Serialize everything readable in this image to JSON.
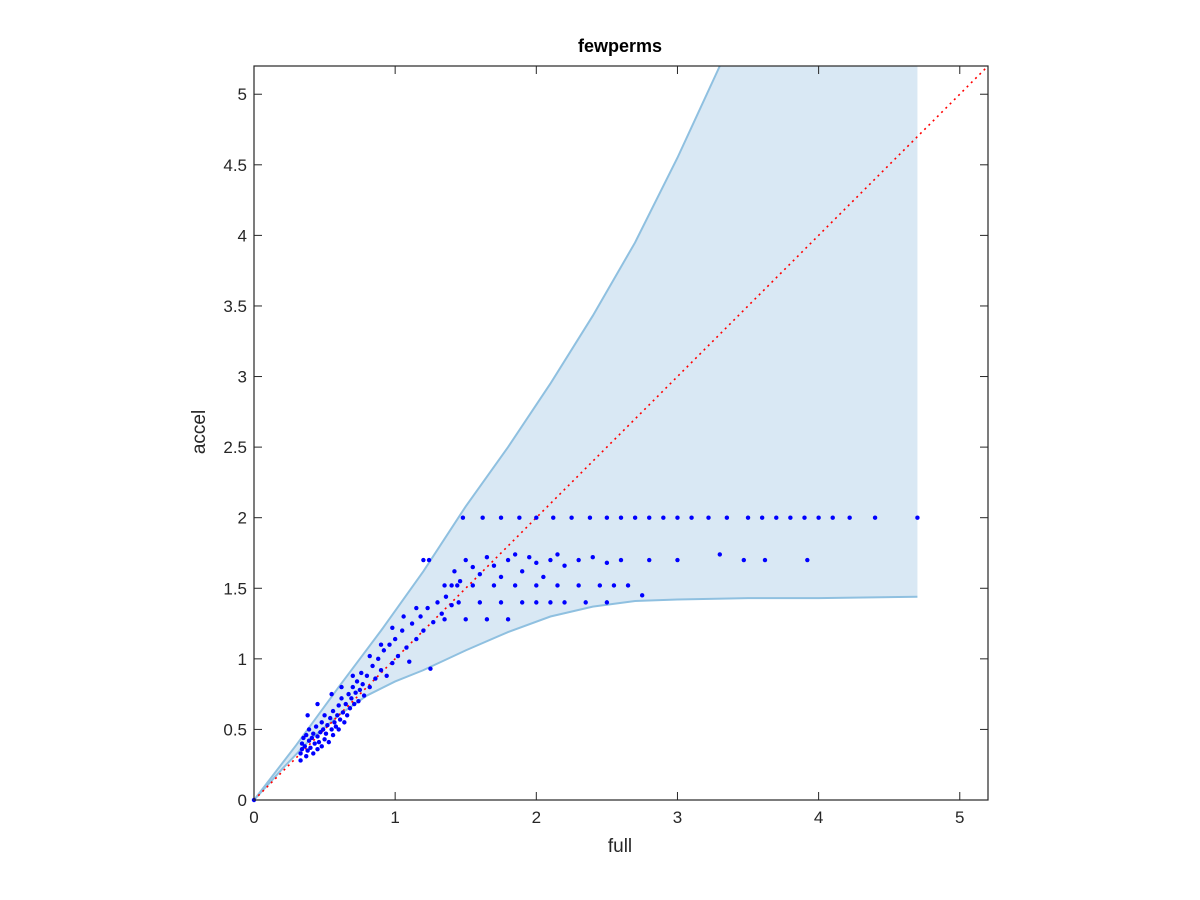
{
  "chart_data": {
    "type": "scatter",
    "title": "fewperms",
    "xlabel": "full",
    "ylabel": "accel",
    "xlim": [
      0,
      5.2
    ],
    "ylim": [
      0,
      5.2
    ],
    "grid": false,
    "legend": "none",
    "xticks": [
      "0",
      "1",
      "2",
      "3",
      "4",
      "5"
    ],
    "yticks": [
      "0",
      "0.5",
      "1",
      "1.5",
      "2",
      "2.5",
      "3",
      "3.5",
      "4",
      "4.5",
      "5"
    ],
    "xtick_values": [
      0,
      1,
      2,
      3,
      4,
      5
    ],
    "ytick_values": [
      0,
      0.5,
      1,
      1.5,
      2,
      2.5,
      3,
      3.5,
      4,
      4.5,
      5
    ],
    "colors": {
      "points": "#0000ff",
      "band_fill": "#d9e8f4",
      "band_edge": "#8fc0e0",
      "reference_line": "#ff0000",
      "axes": "#262626"
    },
    "reference_line": {
      "style": "dotted",
      "x": [
        0,
        5.2
      ],
      "y": [
        0,
        5.2
      ]
    },
    "band": {
      "upper": [
        [
          0,
          0
        ],
        [
          0.3,
          0.39
        ],
        [
          0.6,
          0.8
        ],
        [
          0.9,
          1.2
        ],
        [
          1.2,
          1.62
        ],
        [
          1.5,
          2.08
        ],
        [
          1.8,
          2.5
        ],
        [
          2.1,
          2.95
        ],
        [
          2.4,
          3.43
        ],
        [
          2.7,
          3.95
        ],
        [
          3.0,
          4.55
        ],
        [
          3.3,
          5.2
        ],
        [
          4.7,
          5.2
        ]
      ],
      "lower": [
        [
          0,
          0
        ],
        [
          0.2,
          0.22
        ],
        [
          0.4,
          0.43
        ],
        [
          0.6,
          0.6
        ],
        [
          0.8,
          0.74
        ],
        [
          1.0,
          0.84
        ],
        [
          1.2,
          0.92
        ],
        [
          1.5,
          1.06
        ],
        [
          1.8,
          1.19
        ],
        [
          2.1,
          1.3
        ],
        [
          2.4,
          1.37
        ],
        [
          2.7,
          1.41
        ],
        [
          3.0,
          1.42
        ],
        [
          3.5,
          1.43
        ],
        [
          4.0,
          1.43
        ],
        [
          4.7,
          1.44
        ]
      ],
      "right_edge_x": 4.7
    },
    "series": [
      {
        "points": [
          [
            0,
            0
          ],
          [
            0.33,
            0.28
          ],
          [
            0.33,
            0.33
          ],
          [
            0.34,
            0.36
          ],
          [
            0.34,
            0.4
          ],
          [
            0.35,
            0.44
          ],
          [
            0.36,
            0.38
          ],
          [
            0.37,
            0.31
          ],
          [
            0.37,
            0.46
          ],
          [
            0.38,
            0.35
          ],
          [
            0.39,
            0.42
          ],
          [
            0.39,
            0.5
          ],
          [
            0.4,
            0.37
          ],
          [
            0.41,
            0.44
          ],
          [
            0.42,
            0.33
          ],
          [
            0.42,
            0.47
          ],
          [
            0.43,
            0.4
          ],
          [
            0.44,
            0.52
          ],
          [
            0.45,
            0.36
          ],
          [
            0.45,
            0.45
          ],
          [
            0.46,
            0.41
          ],
          [
            0.47,
            0.48
          ],
          [
            0.48,
            0.38
          ],
          [
            0.48,
            0.55
          ],
          [
            0.49,
            0.5
          ],
          [
            0.5,
            0.43
          ],
          [
            0.5,
            0.6
          ],
          [
            0.51,
            0.47
          ],
          [
            0.52,
            0.53
          ],
          [
            0.53,
            0.41
          ],
          [
            0.54,
            0.58
          ],
          [
            0.55,
            0.5
          ],
          [
            0.56,
            0.46
          ],
          [
            0.56,
            0.63
          ],
          [
            0.57,
            0.55
          ],
          [
            0.58,
            0.52
          ],
          [
            0.59,
            0.6
          ],
          [
            0.6,
            0.67
          ],
          [
            0.6,
            0.5
          ],
          [
            0.61,
            0.57
          ],
          [
            0.62,
            0.72
          ],
          [
            0.63,
            0.62
          ],
          [
            0.64,
            0.55
          ],
          [
            0.65,
            0.68
          ],
          [
            0.66,
            0.6
          ],
          [
            0.67,
            0.75
          ],
          [
            0.68,
            0.65
          ],
          [
            0.69,
            0.72
          ],
          [
            0.7,
            0.8
          ],
          [
            0.71,
            0.68
          ],
          [
            0.72,
            0.76
          ],
          [
            0.73,
            0.84
          ],
          [
            0.74,
            0.7
          ],
          [
            0.75,
            0.78
          ],
          [
            0.76,
            0.9
          ],
          [
            0.77,
            0.82
          ],
          [
            0.78,
            0.74
          ],
          [
            0.8,
            0.88
          ],
          [
            0.82,
            0.8
          ],
          [
            0.84,
            0.95
          ],
          [
            0.86,
            0.86
          ],
          [
            0.88,
            1.0
          ],
          [
            0.9,
            0.92
          ],
          [
            0.92,
            1.06
          ],
          [
            0.94,
            0.88
          ],
          [
            0.96,
            1.1
          ],
          [
            0.98,
            0.97
          ],
          [
            1.0,
            1.14
          ],
          [
            1.02,
            1.02
          ],
          [
            1.05,
            1.2
          ],
          [
            1.08,
            1.08
          ],
          [
            1.1,
            0.98
          ],
          [
            1.12,
            1.25
          ],
          [
            1.15,
            1.14
          ],
          [
            1.18,
            1.3
          ],
          [
            1.2,
            1.2
          ],
          [
            1.23,
            1.36
          ],
          [
            1.25,
            0.93
          ],
          [
            1.27,
            1.26
          ],
          [
            1.3,
            1.4
          ],
          [
            1.33,
            1.32
          ],
          [
            1.36,
            1.44
          ],
          [
            1.4,
            1.38
          ],
          [
            1.44,
            1.52
          ],
          [
            0.38,
            0.6
          ],
          [
            0.45,
            0.68
          ],
          [
            0.55,
            0.75
          ],
          [
            0.62,
            0.8
          ],
          [
            0.7,
            0.88
          ],
          [
            0.82,
            1.02
          ],
          [
            0.9,
            1.1
          ],
          [
            0.98,
            1.22
          ],
          [
            1.06,
            1.3
          ],
          [
            1.15,
            1.36
          ],
          [
            1.2,
            1.7
          ],
          [
            1.24,
            1.7
          ],
          [
            1.35,
            1.52
          ],
          [
            1.42,
            1.62
          ],
          [
            1.46,
            1.55
          ],
          [
            1.5,
            1.7
          ],
          [
            1.55,
            1.65
          ],
          [
            1.6,
            1.6
          ],
          [
            1.65,
            1.72
          ],
          [
            1.7,
            1.66
          ],
          [
            1.75,
            1.58
          ],
          [
            1.8,
            1.7
          ],
          [
            1.85,
            1.74
          ],
          [
            1.9,
            1.62
          ],
          [
            1.95,
            1.72
          ],
          [
            2.0,
            1.68
          ],
          [
            2.05,
            1.58
          ],
          [
            2.1,
            1.7
          ],
          [
            2.15,
            1.74
          ],
          [
            2.2,
            1.66
          ],
          [
            2.3,
            1.7
          ],
          [
            2.4,
            1.72
          ],
          [
            2.5,
            1.68
          ],
          [
            2.6,
            1.7
          ],
          [
            2.65,
            1.52
          ],
          [
            2.8,
            1.7
          ],
          [
            3.0,
            1.7
          ],
          [
            3.3,
            1.74
          ],
          [
            3.47,
            1.7
          ],
          [
            3.62,
            1.7
          ],
          [
            3.92,
            1.7
          ],
          [
            1.48,
            2.0
          ],
          [
            1.62,
            2.0
          ],
          [
            1.75,
            2.0
          ],
          [
            1.88,
            2.0
          ],
          [
            2.0,
            2.0
          ],
          [
            2.12,
            2.0
          ],
          [
            2.25,
            2.0
          ],
          [
            2.38,
            2.0
          ],
          [
            2.5,
            2.0
          ],
          [
            2.6,
            2.0
          ],
          [
            2.7,
            2.0
          ],
          [
            2.8,
            2.0
          ],
          [
            2.9,
            2.0
          ],
          [
            3.0,
            2.0
          ],
          [
            3.1,
            2.0
          ],
          [
            3.22,
            2.0
          ],
          [
            3.35,
            2.0
          ],
          [
            3.5,
            2.0
          ],
          [
            3.6,
            2.0
          ],
          [
            3.7,
            2.0
          ],
          [
            3.8,
            2.0
          ],
          [
            3.9,
            2.0
          ],
          [
            4.0,
            2.0
          ],
          [
            4.1,
            2.0
          ],
          [
            4.22,
            2.0
          ],
          [
            4.4,
            2.0
          ],
          [
            4.7,
            2.0
          ],
          [
            1.4,
            1.52
          ],
          [
            1.55,
            1.52
          ],
          [
            1.7,
            1.52
          ],
          [
            1.85,
            1.52
          ],
          [
            2.0,
            1.52
          ],
          [
            2.15,
            1.52
          ],
          [
            2.3,
            1.52
          ],
          [
            2.45,
            1.52
          ],
          [
            2.55,
            1.52
          ],
          [
            2.75,
            1.45
          ],
          [
            1.45,
            1.4
          ],
          [
            1.6,
            1.4
          ],
          [
            1.75,
            1.4
          ],
          [
            1.9,
            1.4
          ],
          [
            2.0,
            1.4
          ],
          [
            2.1,
            1.4
          ],
          [
            2.2,
            1.4
          ],
          [
            2.35,
            1.4
          ],
          [
            2.5,
            1.4
          ],
          [
            1.35,
            1.28
          ],
          [
            1.5,
            1.28
          ],
          [
            1.65,
            1.28
          ],
          [
            1.8,
            1.28
          ]
        ]
      }
    ]
  }
}
